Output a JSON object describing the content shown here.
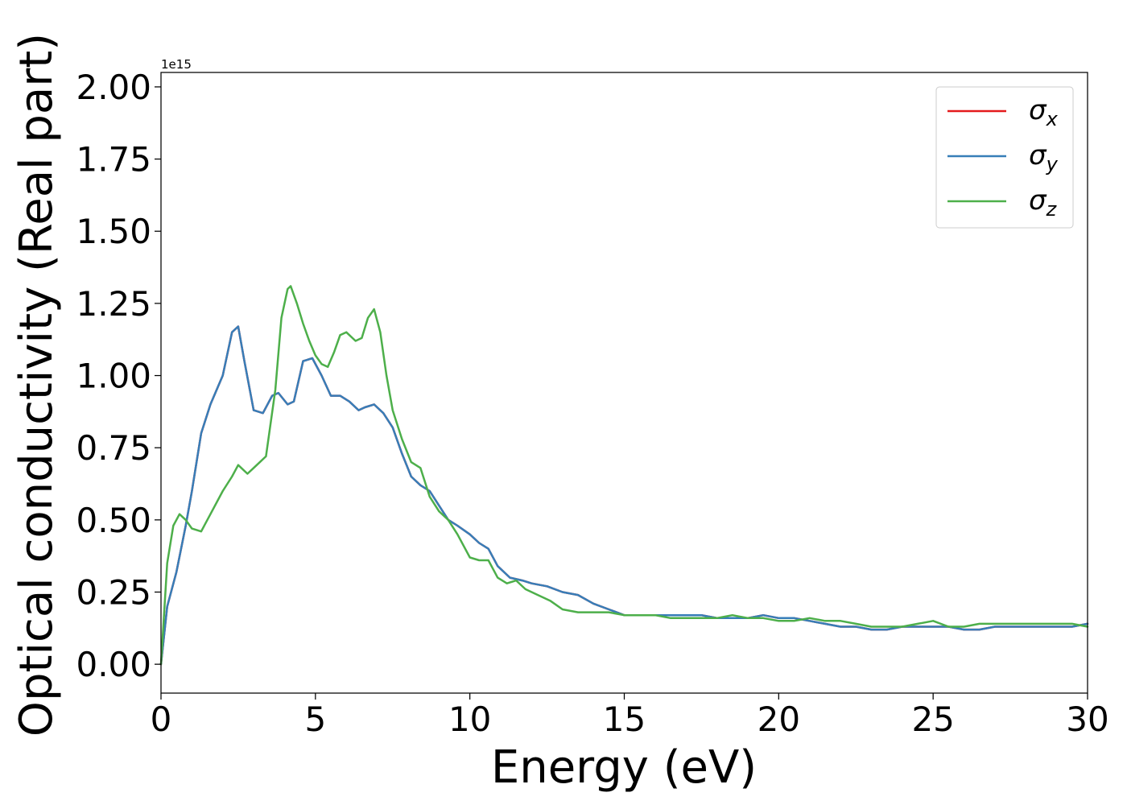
{
  "chart_data": {
    "type": "line",
    "title": "",
    "xlabel": "Energy (eV)",
    "ylabel": "Optical conductivity (Real part)",
    "offset_label": "1e15",
    "xlim": [
      0,
      30
    ],
    "ylim": [
      -0.1,
      2.05
    ],
    "x_scale": "linear",
    "y_scale": "linear",
    "y_multiplier": 1000000000000000.0,
    "grid": false,
    "legend_position": "upper right",
    "x_ticks": [
      0,
      5,
      10,
      15,
      20,
      25,
      30
    ],
    "x_tick_labels": [
      "0",
      "5",
      "10",
      "15",
      "20",
      "25",
      "30"
    ],
    "y_ticks": [
      0,
      0.25,
      0.5,
      0.75,
      1.0,
      1.25,
      1.5,
      1.75,
      2.0
    ],
    "y_tick_labels": [
      "0.00",
      "0.25",
      "0.50",
      "0.75",
      "1.00",
      "1.25",
      "1.50",
      "1.75",
      "2.00"
    ],
    "series": [
      {
        "name": "σx",
        "label_base": "σ",
        "label_sub": "x",
        "color": "#e41a1c",
        "x": [
          0,
          0.2,
          0.5,
          0.8,
          1.0,
          1.3,
          1.6,
          2.0,
          2.3,
          2.5,
          2.7,
          3.0,
          3.3,
          3.6,
          3.8,
          4.1,
          4.3,
          4.6,
          4.9,
          5.2,
          5.5,
          5.8,
          6.1,
          6.4,
          6.6,
          6.9,
          7.2,
          7.5,
          7.8,
          8.1,
          8.4,
          8.7,
          9.0,
          9.3,
          9.6,
          10.0,
          10.3,
          10.6,
          10.9,
          11.3,
          11.7,
          12.0,
          12.5,
          13.0,
          13.5,
          14.0,
          14.5,
          15.0,
          15.5,
          16.0,
          16.5,
          17.0,
          17.5,
          18.0,
          18.5,
          19.0,
          19.5,
          20.0,
          20.5,
          21.0,
          21.5,
          22.0,
          22.5,
          23.0,
          23.5,
          24.0,
          24.5,
          25.0,
          25.5,
          26.0,
          26.5,
          27.0,
          27.5,
          28.0,
          28.5,
          29.0,
          29.5,
          30.0
        ],
        "values": [
          0,
          0.2,
          0.32,
          0.48,
          0.6,
          0.8,
          0.9,
          1.0,
          1.15,
          1.17,
          1.05,
          0.88,
          0.87,
          0.93,
          0.94,
          0.9,
          0.91,
          1.05,
          1.06,
          1.0,
          0.93,
          0.93,
          0.91,
          0.88,
          0.89,
          0.9,
          0.87,
          0.82,
          0.73,
          0.65,
          0.62,
          0.6,
          0.55,
          0.5,
          0.48,
          0.45,
          0.42,
          0.4,
          0.34,
          0.3,
          0.29,
          0.28,
          0.27,
          0.25,
          0.24,
          0.21,
          0.19,
          0.17,
          0.17,
          0.17,
          0.17,
          0.17,
          0.17,
          0.16,
          0.16,
          0.16,
          0.17,
          0.16,
          0.16,
          0.15,
          0.14,
          0.13,
          0.13,
          0.12,
          0.12,
          0.13,
          0.13,
          0.13,
          0.13,
          0.12,
          0.12,
          0.13,
          0.13,
          0.13,
          0.13,
          0.13,
          0.13,
          0.14
        ]
      },
      {
        "name": "σy",
        "label_base": "σ",
        "label_sub": "y",
        "color": "#377eb8",
        "x": [
          0,
          0.2,
          0.5,
          0.8,
          1.0,
          1.3,
          1.6,
          2.0,
          2.3,
          2.5,
          2.7,
          3.0,
          3.3,
          3.6,
          3.8,
          4.1,
          4.3,
          4.6,
          4.9,
          5.2,
          5.5,
          5.8,
          6.1,
          6.4,
          6.6,
          6.9,
          7.2,
          7.5,
          7.8,
          8.1,
          8.4,
          8.7,
          9.0,
          9.3,
          9.6,
          10.0,
          10.3,
          10.6,
          10.9,
          11.3,
          11.7,
          12.0,
          12.5,
          13.0,
          13.5,
          14.0,
          14.5,
          15.0,
          15.5,
          16.0,
          16.5,
          17.0,
          17.5,
          18.0,
          18.5,
          19.0,
          19.5,
          20.0,
          20.5,
          21.0,
          21.5,
          22.0,
          22.5,
          23.0,
          23.5,
          24.0,
          24.5,
          25.0,
          25.5,
          26.0,
          26.5,
          27.0,
          27.5,
          28.0,
          28.5,
          29.0,
          29.5,
          30.0
        ],
        "values": [
          0,
          0.2,
          0.32,
          0.48,
          0.6,
          0.8,
          0.9,
          1.0,
          1.15,
          1.17,
          1.05,
          0.88,
          0.87,
          0.93,
          0.94,
          0.9,
          0.91,
          1.05,
          1.06,
          1.0,
          0.93,
          0.93,
          0.91,
          0.88,
          0.89,
          0.9,
          0.87,
          0.82,
          0.73,
          0.65,
          0.62,
          0.6,
          0.55,
          0.5,
          0.48,
          0.45,
          0.42,
          0.4,
          0.34,
          0.3,
          0.29,
          0.28,
          0.27,
          0.25,
          0.24,
          0.21,
          0.19,
          0.17,
          0.17,
          0.17,
          0.17,
          0.17,
          0.17,
          0.16,
          0.16,
          0.16,
          0.17,
          0.16,
          0.16,
          0.15,
          0.14,
          0.13,
          0.13,
          0.12,
          0.12,
          0.13,
          0.13,
          0.13,
          0.13,
          0.12,
          0.12,
          0.13,
          0.13,
          0.13,
          0.13,
          0.13,
          0.13,
          0.14
        ]
      },
      {
        "name": "σz",
        "label_base": "σ",
        "label_sub": "z",
        "color": "#4daf4a",
        "x": [
          0,
          0.2,
          0.4,
          0.6,
          0.8,
          1.0,
          1.3,
          1.6,
          2.0,
          2.3,
          2.5,
          2.8,
          3.0,
          3.2,
          3.4,
          3.7,
          3.9,
          4.1,
          4.2,
          4.4,
          4.6,
          4.8,
          5.0,
          5.2,
          5.4,
          5.6,
          5.8,
          6.0,
          6.3,
          6.5,
          6.7,
          6.9,
          7.1,
          7.3,
          7.5,
          7.8,
          8.1,
          8.4,
          8.7,
          9.0,
          9.3,
          9.6,
          10.0,
          10.3,
          10.6,
          10.9,
          11.2,
          11.5,
          11.8,
          12.2,
          12.6,
          13.0,
          13.5,
          14.0,
          14.5,
          15.0,
          15.5,
          16.0,
          16.5,
          17.0,
          17.5,
          18.0,
          18.5,
          19.0,
          19.5,
          20.0,
          20.5,
          21.0,
          21.5,
          22.0,
          22.5,
          23.0,
          23.5,
          24.0,
          24.5,
          25.0,
          25.5,
          26.0,
          26.5,
          27.0,
          27.5,
          28.0,
          28.5,
          29.0,
          29.5,
          30.0
        ],
        "values": [
          0,
          0.35,
          0.48,
          0.52,
          0.5,
          0.47,
          0.46,
          0.52,
          0.6,
          0.65,
          0.69,
          0.66,
          0.68,
          0.7,
          0.72,
          0.95,
          1.2,
          1.3,
          1.31,
          1.25,
          1.18,
          1.12,
          1.07,
          1.04,
          1.03,
          1.08,
          1.14,
          1.15,
          1.12,
          1.13,
          1.2,
          1.23,
          1.15,
          1.0,
          0.88,
          0.78,
          0.7,
          0.68,
          0.58,
          0.53,
          0.5,
          0.45,
          0.37,
          0.36,
          0.36,
          0.3,
          0.28,
          0.29,
          0.26,
          0.24,
          0.22,
          0.19,
          0.18,
          0.18,
          0.18,
          0.17,
          0.17,
          0.17,
          0.16,
          0.16,
          0.16,
          0.16,
          0.17,
          0.16,
          0.16,
          0.15,
          0.15,
          0.16,
          0.15,
          0.15,
          0.14,
          0.13,
          0.13,
          0.13,
          0.14,
          0.15,
          0.13,
          0.13,
          0.14,
          0.14,
          0.14,
          0.14,
          0.14,
          0.14,
          0.14,
          0.13
        ]
      }
    ]
  }
}
